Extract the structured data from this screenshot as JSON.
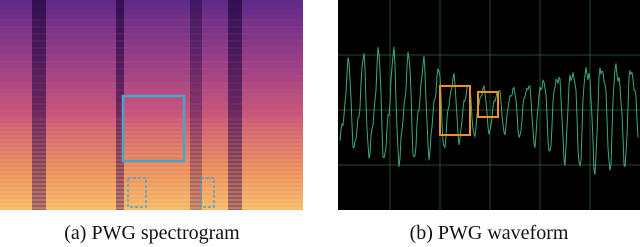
{
  "figure": {
    "panels": [
      {
        "caption": "(a) PWG spectrogram"
      },
      {
        "caption": "(b) PWG waveform"
      }
    ]
  }
}
